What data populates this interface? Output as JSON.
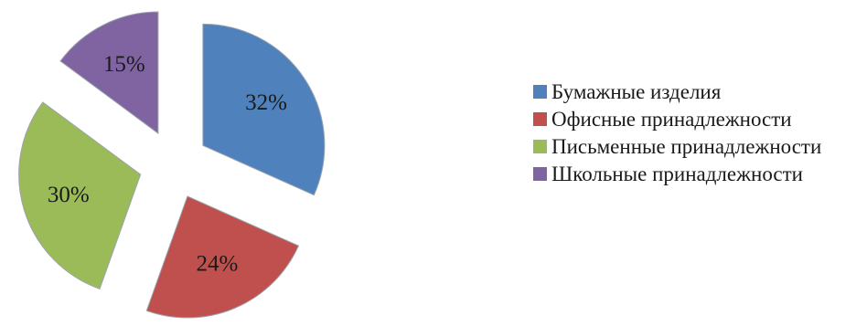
{
  "chart_data": {
    "type": "pie",
    "categories": [
      "Бумажные изделия",
      "Офисные принадлежности",
      "Письменные принадлежности",
      "Школьные принадлежности"
    ],
    "values": [
      32,
      24,
      30,
      15
    ],
    "labels": [
      "32%",
      "24%",
      "30%",
      "15%"
    ],
    "colors": [
      "#4f81bd",
      "#c0504d",
      "#9bbb59",
      "#8064a2"
    ],
    "exploded": true,
    "legend_position": "right"
  },
  "legend": {
    "items": [
      {
        "label": "Бумажные изделия",
        "color": "#4f81bd"
      },
      {
        "label": "Офисные принадлежности",
        "color": "#c0504d"
      },
      {
        "label": "Письменные принадлежности",
        "color": "#9bbb59"
      },
      {
        "label": "Школьные принадлежности",
        "color": "#8064a2"
      }
    ]
  }
}
